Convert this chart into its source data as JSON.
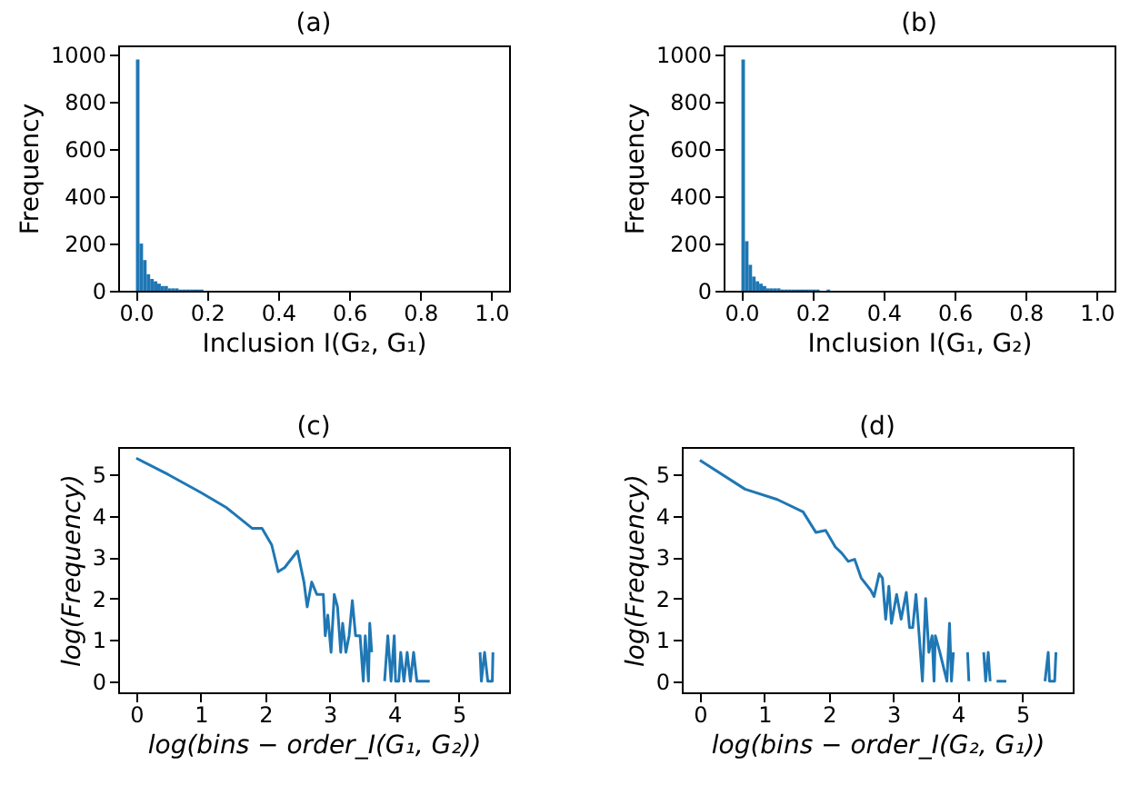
{
  "chart_data": [
    {
      "type": "histogram",
      "title": "(a)",
      "xlabel": "Inclusion I(G₂, G₁)",
      "ylabel": "Frequency",
      "color": "#1f77b4",
      "bins": [
        0,
        0.01,
        0.02,
        0.03,
        0.04,
        0.05,
        0.06,
        0.07,
        0.08,
        0.09,
        0.1,
        0.11,
        0.12,
        0.13,
        0.14,
        0.15,
        0.16,
        0.17,
        0.18,
        0.19,
        0.2
      ],
      "values": [
        980,
        200,
        130,
        70,
        50,
        40,
        30,
        20,
        20,
        10,
        10,
        10,
        5,
        5,
        5,
        5,
        5,
        5,
        5,
        0
      ],
      "xlim": [
        -0.05,
        1.05
      ],
      "xticks": [
        {
          "value": 0,
          "label": "0.0"
        },
        {
          "value": 0.2,
          "label": "0.2"
        },
        {
          "value": 0.4,
          "label": "0.4"
        },
        {
          "value": 0.6,
          "label": "0.6"
        },
        {
          "value": 0.8,
          "label": "0.8"
        },
        {
          "value": 1,
          "label": "1.0"
        }
      ],
      "ylim": [
        0,
        1040
      ],
      "yticks": [
        0,
        200,
        400,
        600,
        800,
        1000
      ]
    },
    {
      "type": "histogram",
      "title": "(b)",
      "xlabel": "Inclusion I(G₁, G₂)",
      "ylabel": "Frequency",
      "color": "#1f77b4",
      "bins": [
        0,
        0.01,
        0.02,
        0.03,
        0.04,
        0.05,
        0.06,
        0.07,
        0.08,
        0.09,
        0.1,
        0.11,
        0.12,
        0.13,
        0.14,
        0.15,
        0.16,
        0.17,
        0.18,
        0.19,
        0.2,
        0.21,
        0.22,
        0.23,
        0.24,
        0.25
      ],
      "values": [
        980,
        210,
        110,
        60,
        40,
        30,
        20,
        10,
        10,
        10,
        10,
        5,
        5,
        5,
        5,
        5,
        5,
        5,
        5,
        5,
        5,
        5,
        0,
        0,
        5
      ],
      "xlim": [
        -0.05,
        1.05
      ],
      "xticks": [
        {
          "value": 0,
          "label": "0.0"
        },
        {
          "value": 0.2,
          "label": "0.2"
        },
        {
          "value": 0.4,
          "label": "0.4"
        },
        {
          "value": 0.6,
          "label": "0.6"
        },
        {
          "value": 0.8,
          "label": "0.8"
        },
        {
          "value": 1,
          "label": "1.0"
        }
      ],
      "ylim": [
        0,
        1040
      ],
      "yticks": [
        0,
        200,
        400,
        600,
        800,
        1000
      ]
    },
    {
      "type": "line",
      "title": "(c)",
      "xlabel": "log(bins − order_I(G₁, G₂))",
      "ylabel": "log(Frequency)",
      "color": "#1f77b4",
      "x": [
        0,
        0.5,
        1.0,
        1.4,
        1.8,
        1.95,
        2.1,
        2.2,
        2.3,
        2.5,
        2.6,
        2.65,
        2.72,
        2.8,
        2.9,
        2.93,
        2.97,
        3.02,
        3.07,
        3.12,
        3.17,
        3.2,
        3.25,
        3.3,
        3.35,
        3.4,
        3.47,
        3.52,
        3.55,
        3.6,
        3.62,
        3.65,
        3.75,
        3.85,
        3.9,
        3.95,
        4.0,
        4.02,
        4.07,
        4.1,
        4.15,
        4.2,
        4.25,
        4.3,
        4.35,
        4.55,
        4.9,
        5.33,
        5.35,
        5.4,
        5.45,
        5.52,
        5.53
      ],
      "values": [
        5.4,
        5.0,
        4.57,
        4.2,
        3.7,
        3.7,
        3.3,
        2.65,
        2.75,
        3.15,
        2.4,
        1.8,
        2.4,
        2.1,
        2.1,
        1.1,
        1.6,
        0.7,
        2.1,
        1.8,
        0.7,
        1.4,
        0.7,
        1.1,
        1.95,
        1.1,
        1.1,
        0,
        1.1,
        0,
        1.4,
        0.7,
        null,
        0,
        1.1,
        0,
        1.1,
        0,
        0,
        0.7,
        0,
        0.7,
        0,
        0.7,
        0,
        0,
        null,
        0.7,
        0,
        0.7,
        0,
        0,
        0.7
      ],
      "xlim": [
        -0.28,
        5.78
      ],
      "xticks": [
        0,
        1,
        2,
        3,
        4,
        5
      ],
      "ylim": [
        -0.27,
        5.67
      ],
      "yticks": [
        0,
        1,
        2,
        3,
        4,
        5
      ]
    },
    {
      "type": "line",
      "title": "(d)",
      "xlabel": "log(bins − order_I(G₂, G₁))",
      "ylabel": "log(Frequency)",
      "color": "#1f77b4",
      "x": [
        0,
        0.7,
        1.2,
        1.6,
        1.8,
        1.95,
        2.1,
        2.2,
        2.3,
        2.4,
        2.5,
        2.65,
        2.7,
        2.78,
        2.83,
        2.88,
        2.93,
        2.97,
        3.05,
        3.12,
        3.2,
        3.25,
        3.3,
        3.35,
        3.4,
        3.45,
        3.5,
        3.55,
        3.6,
        3.63,
        3.65,
        3.72,
        3.83,
        3.87,
        3.9,
        3.93,
        4.0,
        4.15,
        4.17,
        4.3,
        4.4,
        4.43,
        4.47,
        4.5,
        4.55,
        4.6,
        4.75,
        5.0,
        5.35,
        5.4,
        5.42,
        5.5,
        5.52
      ],
      "values": [
        5.35,
        4.65,
        4.4,
        4.1,
        3.6,
        3.65,
        3.25,
        3.1,
        2.9,
        2.95,
        2.5,
        2.2,
        2.05,
        2.6,
        2.5,
        1.5,
        2.3,
        1.4,
        2.1,
        1.5,
        2.15,
        1.3,
        1.3,
        2.1,
        1.1,
        0,
        2.0,
        0.7,
        1.1,
        0,
        1.1,
        0.7,
        0,
        1.4,
        0,
        0.7,
        null,
        0.7,
        0,
        null,
        0.7,
        0,
        0.7,
        0,
        null,
        0,
        0,
        null,
        0,
        0.7,
        0,
        0,
        0.7
      ],
      "xlim": [
        -0.28,
        5.78
      ],
      "xticks": [
        0,
        1,
        2,
        3,
        4,
        5
      ],
      "ylim": [
        -0.27,
        5.67
      ],
      "yticks": [
        0,
        1,
        2,
        3,
        4,
        5
      ]
    }
  ]
}
